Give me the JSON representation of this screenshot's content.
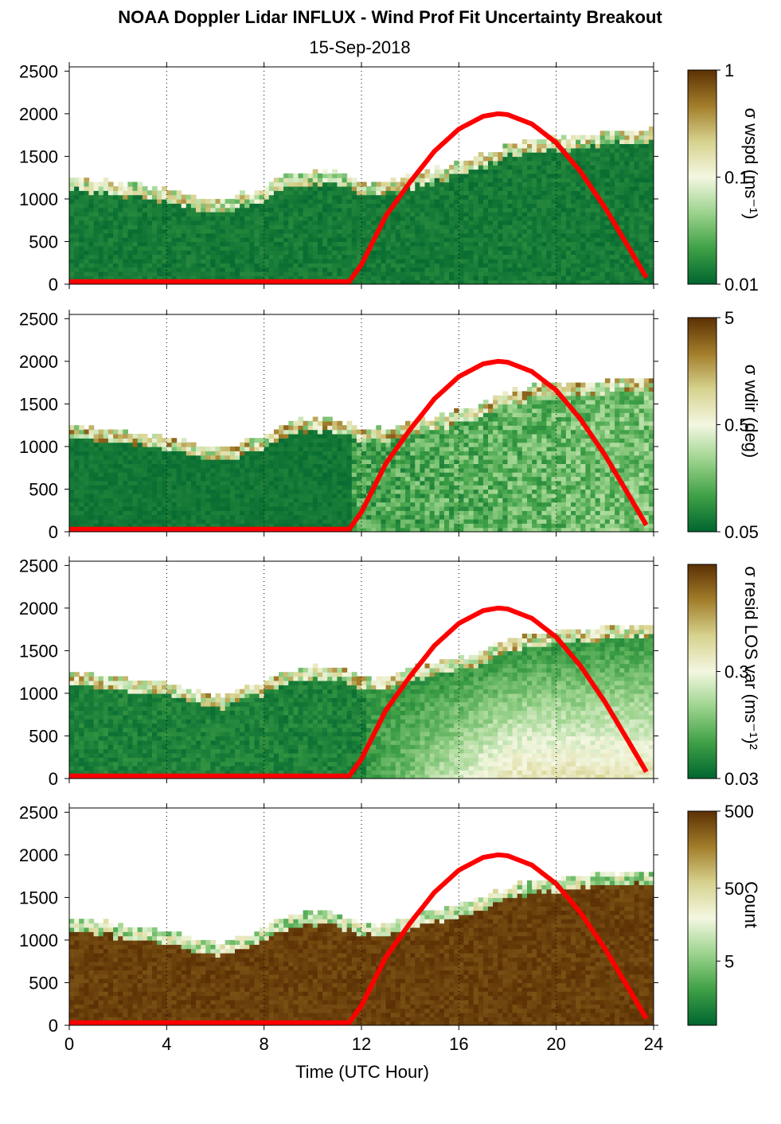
{
  "title": "NOAA Doppler Lidar INFLUX - Wind Prof Fit Uncertainty Breakout",
  "subtitle": "15-Sep-2018",
  "xlabel": "Time (UTC Hour)",
  "x_ticks": [
    "0",
    "4",
    "8",
    "12",
    "16",
    "20",
    "24"
  ],
  "y_ticks": [
    "0",
    "500",
    "1000",
    "1500",
    "2000",
    "2500"
  ],
  "panels": [
    {
      "colorbar_label": "σ wspd (ms⁻¹)",
      "colorbar_ticks": [
        "1",
        "0.1",
        "0.01"
      ],
      "fill": "low"
    },
    {
      "colorbar_label": "σ wdir (deg)",
      "colorbar_ticks": [
        "5",
        "0.5",
        "0.05"
      ],
      "fill": "mixed"
    },
    {
      "colorbar_label": "σ resid LOS var (ms⁻¹)²",
      "colorbar_ticks": [
        "0.3",
        "0.03"
      ],
      "fill": "high"
    },
    {
      "colorbar_label": "Count",
      "colorbar_ticks": [
        "500",
        "50",
        "5"
      ],
      "fill": "count"
    }
  ],
  "colormap": [
    "#00652f",
    "#3fa046",
    "#9bd38c",
    "#f4f7e1",
    "#d6d28e",
    "#a27d2a",
    "#5c3004"
  ],
  "line_color": "#ff0000",
  "chart_data": {
    "type": "heatmap",
    "x_range": [
      0,
      24
    ],
    "y_range": [
      0,
      2550
    ],
    "grid": "dotted vertical at 4-hour intervals",
    "boundary_layer_top": {
      "x": [
        0,
        1,
        2,
        3,
        4,
        5,
        6,
        7,
        8,
        9,
        10,
        11,
        12,
        13,
        14,
        15,
        16,
        17,
        18,
        19,
        20,
        21,
        22,
        23,
        23.8
      ],
      "y": [
        1230,
        1200,
        1150,
        1130,
        1080,
        1010,
        950,
        1030,
        1120,
        1270,
        1300,
        1280,
        1170,
        1180,
        1260,
        1330,
        1400,
        1500,
        1620,
        1680,
        1700,
        1720,
        1760,
        1780,
        1780
      ]
    },
    "solar_elevation_curve": {
      "x": [
        0,
        11.5,
        12,
        13,
        14,
        15,
        16,
        17,
        17.6,
        18,
        19,
        20,
        21,
        22,
        23,
        23.8
      ],
      "y": [
        30,
        30,
        230,
        800,
        1200,
        1560,
        1820,
        1970,
        2000,
        1990,
        1880,
        1660,
        1320,
        900,
        420,
        30
      ]
    }
  }
}
